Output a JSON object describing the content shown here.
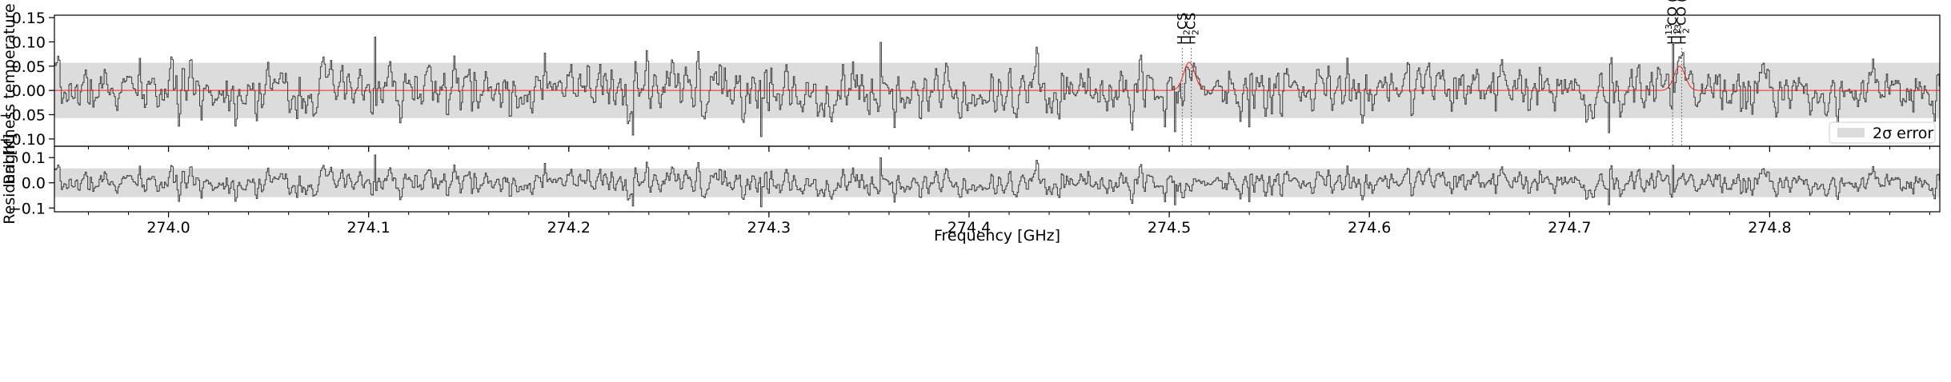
{
  "chart_data": [
    {
      "type": "line",
      "panel": "top",
      "title": "",
      "xlabel": "",
      "ylabel": "Brightness temperature [K]",
      "xlim": [
        273.943,
        274.885
      ],
      "ylim": [
        -0.115,
        0.155
      ],
      "yticks": [
        -0.1,
        -0.05,
        0.0,
        0.05,
        0.1,
        0.15
      ],
      "ytick_labels": [
        "−0.10",
        "−0.05",
        "0.00",
        "0.05",
        "0.10",
        "0.15"
      ],
      "error_band": {
        "name": "2σ error",
        "lower": -0.057,
        "upper": 0.057,
        "color": "#dcdcdc"
      },
      "legend": {
        "position": "lower-right",
        "entries": [
          {
            "label": "2σ error",
            "swatch": "#dcdcdc"
          }
        ]
      },
      "series": [
        {
          "name": "",
          "style": "step",
          "color": "#3a3a3a",
          "noise_sigma": 0.028,
          "seed": 7,
          "spikes": [
            [
              274.103,
              0.11
            ],
            [
              274.232,
              -0.092
            ],
            [
              274.296,
              -0.095
            ],
            [
              274.356,
              0.099
            ],
            [
              274.503,
              -0.085
            ],
            [
              274.54,
              -0.075
            ],
            [
              274.72,
              -0.087
            ],
            [
              274.752,
              0.095
            ]
          ]
        },
        {
          "name": "",
          "style": "model",
          "color": "#e8261f",
          "peaks": [
            {
              "center": 274.51,
              "amplitude": 0.058,
              "width": 0.0028
            },
            {
              "center": 274.755,
              "amplitude": 0.05,
              "width": 0.0028
            }
          ]
        }
      ],
      "line_markers": [
        {
          "freq": 274.5065,
          "label_main": "H",
          "label_sub": "2",
          "label_rest": "CS"
        },
        {
          "freq": 274.511,
          "label_main": "H",
          "label_sub": "2",
          "label_rest": "CS"
        },
        {
          "freq": 274.7515,
          "label_main": "H",
          "label_sub": "2",
          "label_sup": "13",
          "label_rest": "CO (ST)"
        },
        {
          "freq": 274.756,
          "label_main": "H",
          "label_sub": "2",
          "label_sup": "13",
          "label_rest": "CO (ST)"
        }
      ]
    },
    {
      "type": "line",
      "panel": "bottom",
      "title": "",
      "xlabel": "Frequency [GHz]",
      "ylabel": "Residual [K]",
      "xlim": [
        273.943,
        274.885
      ],
      "ylim": [
        -0.115,
        0.145
      ],
      "yticks": [
        -0.1,
        0.0,
        0.1
      ],
      "ytick_labels": [
        "−0.1",
        "0.0",
        "0.1"
      ],
      "xticks": [
        274.0,
        274.1,
        274.2,
        274.3,
        274.4,
        274.5,
        274.6,
        274.7,
        274.8
      ],
      "xtick_labels": [
        "274.0",
        "274.1",
        "274.2",
        "274.3",
        "274.4",
        "274.5",
        "274.6",
        "274.7",
        "274.8"
      ],
      "error_band": {
        "lower": -0.057,
        "upper": 0.057,
        "color": "#dcdcdc"
      },
      "series": [
        {
          "name": "",
          "style": "step",
          "color": "#3a3a3a",
          "noise_sigma": 0.028,
          "seed": 7,
          "subtract_model": true
        }
      ]
    }
  ]
}
